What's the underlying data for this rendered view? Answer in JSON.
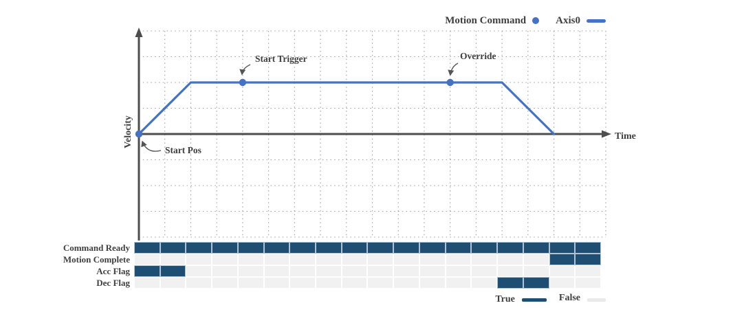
{
  "colors": {
    "accent_blue": "#4472C4",
    "flag_true_fill": "#1F4E73",
    "flag_false_fill": "#F1F1F1",
    "flag_cell_border": "#AEC3D6",
    "false_swatch": "#E9E9E9",
    "axis_gray": "#4D4D4D",
    "text_gray": "#3F3F3F",
    "grid_dot_gray": "#9C9C9C"
  },
  "chart_data": [
    {
      "type": "line",
      "title": "",
      "xlabel": "Time",
      "ylabel": "Velocity",
      "x_unit": "grid cells",
      "y_unit": "grid cells above time axis",
      "grid": {
        "cols": 18,
        "rows": 8,
        "time_axis_row": 4,
        "style": "dotted",
        "on": true
      },
      "legend_position": "top-right",
      "legend": [
        {
          "label": "Motion Command",
          "marker": "dot"
        },
        {
          "label": "Axis0",
          "marker": "line"
        }
      ],
      "series": [
        {
          "name": "Axis0",
          "points": [
            [
              0,
              0
            ],
            [
              2,
              2
            ],
            [
              14,
              2
            ],
            [
              16,
              0
            ]
          ]
        }
      ],
      "markers": [
        {
          "label": "Start Pos",
          "x": 0,
          "y": 0
        },
        {
          "label": "Start Trigger",
          "x": 4,
          "y": 2
        },
        {
          "label": "Override",
          "x": 12,
          "y": 2
        }
      ]
    },
    {
      "type": "table",
      "segments": 18,
      "rows": [
        {
          "label": "Command Ready",
          "true_ranges": [
            [
              0,
              18
            ]
          ]
        },
        {
          "label": "Motion Complete",
          "true_ranges": [
            [
              16,
              18
            ]
          ]
        },
        {
          "label": "Acc Flag",
          "true_ranges": [
            [
              0,
              2
            ]
          ]
        },
        {
          "label": "Dec Flag",
          "true_ranges": [
            [
              14,
              16
            ]
          ]
        }
      ],
      "legend": {
        "true_label": "True",
        "false_label": "False"
      }
    }
  ]
}
